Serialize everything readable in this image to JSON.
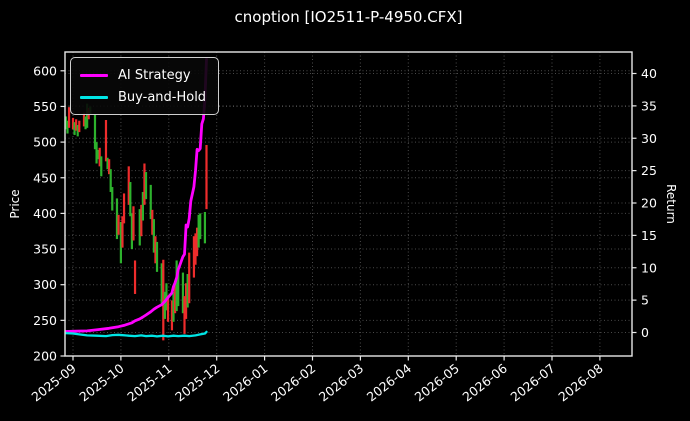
{
  "chart_data": {
    "type": "candlestick+line",
    "title": "cnoption [IO2511-P-4950.CFX]",
    "left_axis": {
      "label": "Price",
      "ticks": [
        200,
        250,
        300,
        350,
        400,
        450,
        500,
        550,
        600
      ],
      "range": [
        200,
        600
      ]
    },
    "right_axis": {
      "label": "Return",
      "ticks": [
        0,
        5,
        10,
        15,
        20,
        25,
        30,
        35,
        40
      ],
      "range": [
        0,
        40
      ]
    },
    "x_axis": {
      "ticks": [
        "2025-09",
        "2025-10",
        "2025-11",
        "2025-12",
        "2026-01",
        "2026-02",
        "2026-03",
        "2026-04",
        "2026-05",
        "2026-06",
        "2026-07",
        "2026-08"
      ]
    },
    "legend": [
      {
        "label": "AI Strategy",
        "color": "#ff00ff"
      },
      {
        "label": "Buy-and-Hold",
        "color": "#00e5e5"
      }
    ],
    "colors": {
      "up": "#ee2c2c",
      "down": "#2db22d",
      "grid": "#4a4a4a",
      "spine": "#e8e8e8",
      "background": "#000000",
      "text": "#ffffff"
    },
    "candles": [
      [
        "2025-08-26",
        526,
        542,
        "up"
      ],
      [
        "2025-08-27",
        518,
        536,
        "down"
      ],
      [
        "2025-08-28",
        512,
        530,
        "down"
      ],
      [
        "2025-08-29",
        520,
        549,
        "up"
      ],
      [
        "2025-09-01",
        518,
        534,
        "up"
      ],
      [
        "2025-09-02",
        510,
        528,
        "down"
      ],
      [
        "2025-09-03",
        516,
        532,
        "up"
      ],
      [
        "2025-09-04",
        508,
        524,
        "down"
      ],
      [
        "2025-09-05",
        514,
        530,
        "up"
      ],
      [
        "2025-09-08",
        522,
        541,
        "up"
      ],
      [
        "2025-09-09",
        518,
        536,
        "down"
      ],
      [
        "2025-09-10",
        520,
        554,
        "down"
      ],
      [
        "2025-09-11",
        532,
        548,
        "up"
      ],
      [
        "2025-09-12",
        538,
        550,
        "down"
      ],
      [
        "2025-09-15",
        490,
        538,
        "down"
      ],
      [
        "2025-09-16",
        470,
        500,
        "down"
      ],
      [
        "2025-09-17",
        476,
        489,
        "down"
      ],
      [
        "2025-09-18",
        466,
        492,
        "up"
      ],
      [
        "2025-09-19",
        452,
        480,
        "down"
      ],
      [
        "2025-09-22",
        473,
        531,
        "up"
      ],
      [
        "2025-09-23",
        462,
        478,
        "down"
      ],
      [
        "2025-09-24",
        455,
        476,
        "up"
      ],
      [
        "2025-09-25",
        430,
        462,
        "down"
      ],
      [
        "2025-09-26",
        404,
        437,
        "down"
      ],
      [
        "2025-09-29",
        364,
        421,
        "down"
      ],
      [
        "2025-09-30",
        370,
        398,
        "up"
      ],
      [
        "2025-10-01",
        330,
        388,
        "down"
      ],
      [
        "2025-10-02",
        352,
        396,
        "up"
      ],
      [
        "2025-10-03",
        386,
        428,
        "up"
      ],
      [
        "2025-10-06",
        412,
        466,
        "up"
      ],
      [
        "2025-10-07",
        396,
        444,
        "down"
      ],
      [
        "2025-10-08",
        350,
        400,
        "down"
      ],
      [
        "2025-10-09",
        362,
        410,
        "up"
      ],
      [
        "2025-10-10",
        287,
        334,
        "up"
      ],
      [
        "2025-10-13",
        355,
        406,
        "down"
      ],
      [
        "2025-10-14",
        368,
        412,
        "up"
      ],
      [
        "2025-10-15",
        390,
        430,
        "down"
      ],
      [
        "2025-10-16",
        412,
        470,
        "up"
      ],
      [
        "2025-10-17",
        420,
        458,
        "down"
      ],
      [
        "2025-10-20",
        392,
        440,
        "down"
      ],
      [
        "2025-10-21",
        370,
        405,
        "up"
      ],
      [
        "2025-10-22",
        345,
        392,
        "down"
      ],
      [
        "2025-10-23",
        330,
        368,
        "up"
      ],
      [
        "2025-10-24",
        318,
        360,
        "down"
      ],
      [
        "2025-10-27",
        270,
        330,
        "down"
      ],
      [
        "2025-10-28",
        222,
        335,
        "up"
      ],
      [
        "2025-10-29",
        252,
        290,
        "down"
      ],
      [
        "2025-10-30",
        264,
        302,
        "down"
      ],
      [
        "2025-10-31",
        248,
        285,
        "up"
      ],
      [
        "2025-11-03",
        236,
        278,
        "up"
      ],
      [
        "2025-11-04",
        248,
        290,
        "down"
      ],
      [
        "2025-11-05",
        260,
        304,
        "up"
      ],
      [
        "2025-11-06",
        263,
        334,
        "down"
      ],
      [
        "2025-11-07",
        270,
        322,
        "down"
      ],
      [
        "2025-11-10",
        260,
        317,
        "down"
      ],
      [
        "2025-11-11",
        231,
        284,
        "up"
      ],
      [
        "2025-11-12",
        252,
        302,
        "up"
      ],
      [
        "2025-11-13",
        268,
        315,
        "down"
      ],
      [
        "2025-11-14",
        274,
        345,
        "up"
      ],
      [
        "2025-11-17",
        310,
        368,
        "up"
      ],
      [
        "2025-11-18",
        328,
        372,
        "up"
      ],
      [
        "2025-11-19",
        340,
        380,
        "up"
      ],
      [
        "2025-11-20",
        352,
        398,
        "down"
      ],
      [
        "2025-11-21",
        364,
        400,
        "down"
      ],
      [
        "2025-11-24",
        358,
        402,
        "down"
      ],
      [
        "2025-11-25",
        406,
        496,
        "up"
      ]
    ],
    "series": [
      {
        "name": "AI Strategy",
        "color": "#ff00ff",
        "width": 2.8,
        "points": [
          [
            "2025-08-26",
            0.15
          ],
          [
            "2025-09-03",
            0.2
          ],
          [
            "2025-09-10",
            0.25
          ],
          [
            "2025-09-17",
            0.45
          ],
          [
            "2025-09-24",
            0.65
          ],
          [
            "2025-09-30",
            0.9
          ],
          [
            "2025-10-03",
            1.1
          ],
          [
            "2025-10-08",
            1.5
          ],
          [
            "2025-10-10",
            1.8
          ],
          [
            "2025-10-13",
            2.1
          ],
          [
            "2025-10-15",
            2.4
          ],
          [
            "2025-10-17",
            2.7
          ],
          [
            "2025-10-20",
            3.2
          ],
          [
            "2025-10-22",
            3.6
          ],
          [
            "2025-10-24",
            3.9
          ],
          [
            "2025-10-27",
            4.3
          ],
          [
            "2025-10-29",
            4.8
          ],
          [
            "2025-10-31",
            5.4
          ],
          [
            "2025-11-03",
            6.1
          ],
          [
            "2025-11-04",
            7.1
          ],
          [
            "2025-11-05",
            7.7
          ],
          [
            "2025-11-06",
            8.5
          ],
          [
            "2025-11-07",
            9.7
          ],
          [
            "2025-11-10",
            11.7
          ],
          [
            "2025-11-11",
            12.1
          ],
          [
            "2025-11-12",
            16.6
          ],
          [
            "2025-11-13",
            16.3
          ],
          [
            "2025-11-14",
            17.6
          ],
          [
            "2025-11-15",
            20.3
          ],
          [
            "2025-11-17",
            22.5
          ],
          [
            "2025-11-18",
            25.0
          ],
          [
            "2025-11-19",
            28.3
          ],
          [
            "2025-11-20",
            28.1
          ],
          [
            "2025-11-21",
            28.4
          ],
          [
            "2025-11-22",
            32.2
          ],
          [
            "2025-11-23",
            33.0
          ],
          [
            "2025-11-24",
            36.0
          ],
          [
            "2025-11-25",
            42.2
          ]
        ]
      },
      {
        "name": "Buy-and-Hold",
        "color": "#00e5e5",
        "width": 2.3,
        "points": [
          [
            "2025-08-26",
            -0.1
          ],
          [
            "2025-09-01",
            -0.15
          ],
          [
            "2025-09-05",
            -0.3
          ],
          [
            "2025-09-10",
            -0.45
          ],
          [
            "2025-09-16",
            -0.5
          ],
          [
            "2025-09-22",
            -0.55
          ],
          [
            "2025-09-26",
            -0.4
          ],
          [
            "2025-09-30",
            -0.35
          ],
          [
            "2025-10-06",
            -0.5
          ],
          [
            "2025-10-10",
            -0.55
          ],
          [
            "2025-10-14",
            -0.45
          ],
          [
            "2025-10-17",
            -0.55
          ],
          [
            "2025-10-21",
            -0.5
          ],
          [
            "2025-10-24",
            -0.6
          ],
          [
            "2025-10-28",
            -0.5
          ],
          [
            "2025-10-31",
            -0.6
          ],
          [
            "2025-11-04",
            -0.5
          ],
          [
            "2025-11-07",
            -0.55
          ],
          [
            "2025-11-11",
            -0.5
          ],
          [
            "2025-11-14",
            -0.55
          ],
          [
            "2025-11-18",
            -0.45
          ],
          [
            "2025-11-21",
            -0.3
          ],
          [
            "2025-11-24",
            -0.15
          ],
          [
            "2025-11-25",
            0.1
          ]
        ]
      }
    ]
  }
}
